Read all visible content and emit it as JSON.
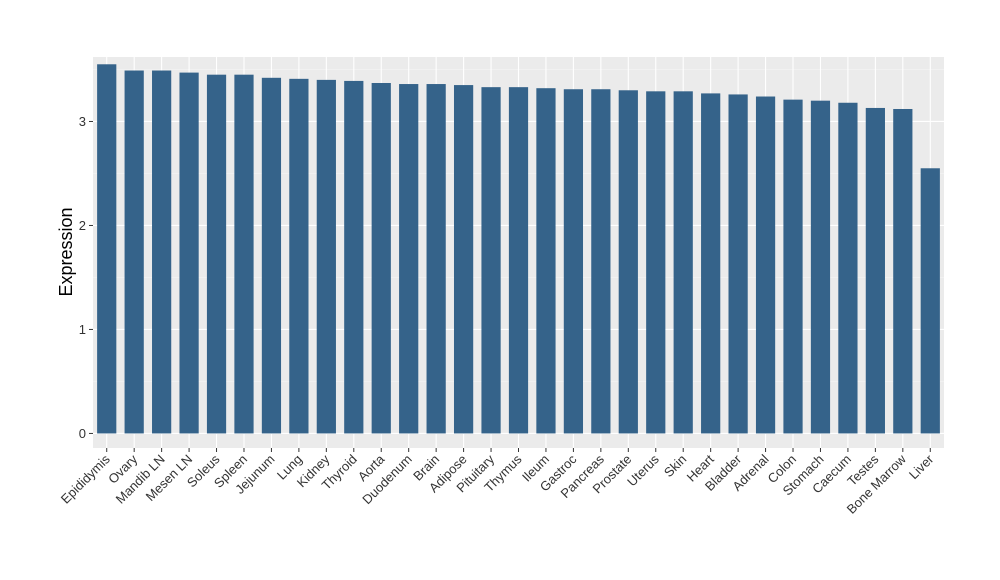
{
  "chart_data": {
    "type": "bar",
    "title": "",
    "xlabel": "",
    "ylabel": "Expression",
    "ylim": [
      -0.14,
      3.62
    ],
    "yticks": [
      0,
      1,
      2,
      3
    ],
    "grid": true,
    "legend": "none",
    "colors": {
      "bar": "#35638a",
      "panel": "#ebebeb",
      "grid_major": "#ffffff"
    },
    "categories": [
      "Epididymis",
      "Ovary",
      "Mandib LN",
      "Mesen LN",
      "Soleus",
      "Spleen",
      "Jejunum",
      "Lung",
      "Kidney",
      "Thyroid",
      "Aorta",
      "Duodenum",
      "Brain",
      "Adipose",
      "Pituitary",
      "Thymus",
      "Ileum",
      "Gastroc",
      "Pancreas",
      "Prostate",
      "Uterus",
      "Skin",
      "Heart",
      "Bladder",
      "Adrenal",
      "Colon",
      "Stomach",
      "Caecum",
      "Testes",
      "Bone Marrow",
      "Liver"
    ],
    "values": [
      3.55,
      3.49,
      3.49,
      3.47,
      3.45,
      3.45,
      3.42,
      3.41,
      3.4,
      3.39,
      3.37,
      3.36,
      3.36,
      3.35,
      3.33,
      3.33,
      3.32,
      3.31,
      3.31,
      3.3,
      3.29,
      3.29,
      3.27,
      3.26,
      3.24,
      3.21,
      3.2,
      3.18,
      3.13,
      3.12,
      2.55
    ]
  }
}
